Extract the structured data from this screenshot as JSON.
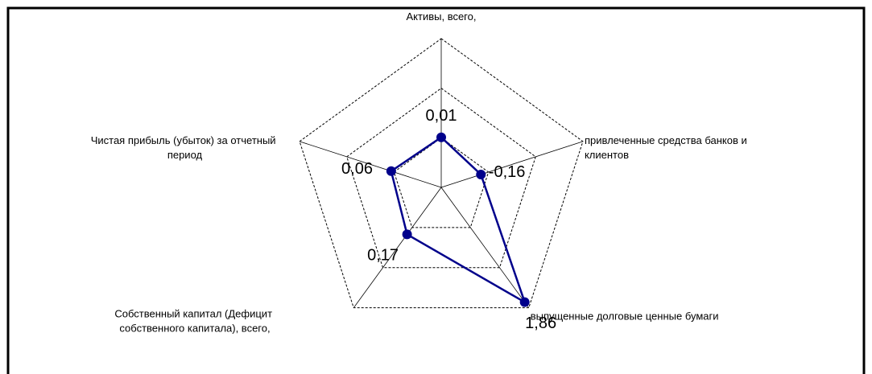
{
  "chart_data": {
    "type": "radar",
    "categories": [
      "Активы, всего,",
      "привлеченные средства банков и клиентов",
      "выпущенные долговые ценные бумаги",
      "Собственный капитал (Дефицит собственного капитала), всего,",
      "Чистая прибыль (убыток) за отчетный период"
    ],
    "series": [
      {
        "color": "#00008b",
        "values": [
          0.01,
          -0.16,
          1.86,
          0.17,
          0.06
        ],
        "value_labels": [
          "0,01",
          "-0,16",
          "1,86",
          "0,17",
          "0,06"
        ],
        "value_label_colors": [
          "#000000",
          "#ff0000",
          "#000000",
          "#000000",
          "#000000"
        ]
      }
    ],
    "ylim": [
      -1,
      2
    ],
    "yticks": [
      -1,
      0,
      1,
      2
    ],
    "grid": true
  }
}
